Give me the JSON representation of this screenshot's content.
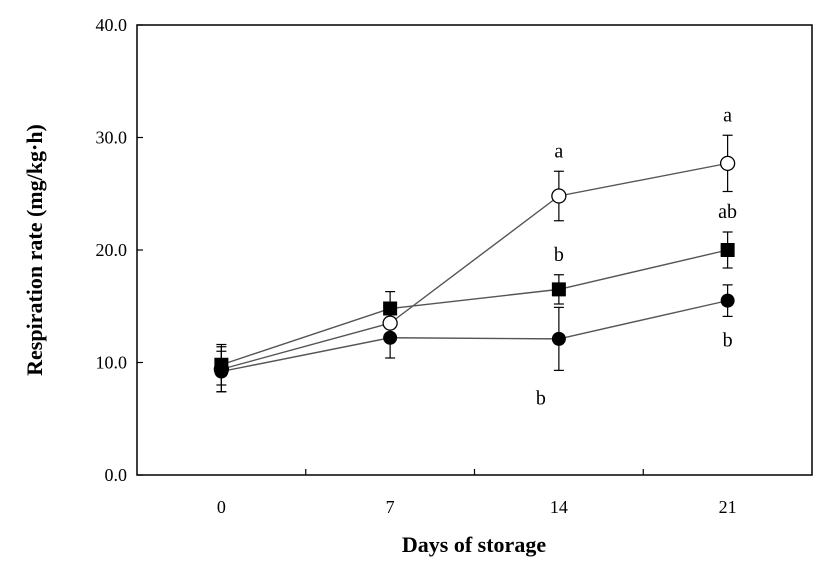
{
  "chart_data": {
    "type": "line",
    "xlabel": "Days of storage",
    "ylabel": "Respiration rate (mg/kg·h)",
    "x": [
      0,
      7,
      14,
      21
    ],
    "xticks": [
      "0",
      "7",
      "14",
      "21"
    ],
    "yticks": [
      "0.0",
      "10.0",
      "20.0",
      "30.0",
      "40.0"
    ],
    "ylim": [
      0,
      40
    ],
    "grid": false,
    "series": [
      {
        "marker": "circle-open",
        "values": [
          9.4,
          13.5,
          24.8,
          27.7
        ],
        "errors": [
          2.0,
          1.5,
          2.2,
          2.5
        ],
        "annotations": [
          "",
          "",
          "a",
          "a"
        ]
      },
      {
        "marker": "square-filled",
        "values": [
          9.8,
          14.8,
          16.5,
          20.0
        ],
        "errors": [
          1.8,
          1.5,
          1.3,
          1.6
        ],
        "annotations": [
          "",
          "",
          "b",
          "ab"
        ]
      },
      {
        "marker": "circle-filled",
        "values": [
          9.2,
          12.2,
          12.1,
          15.5
        ],
        "errors": [
          1.8,
          1.8,
          2.8,
          1.4
        ],
        "annotations": [
          "",
          "",
          "b",
          "b"
        ]
      }
    ],
    "colors": {
      "line": "#555555",
      "marker": "#000000",
      "axis": "#000000"
    }
  }
}
